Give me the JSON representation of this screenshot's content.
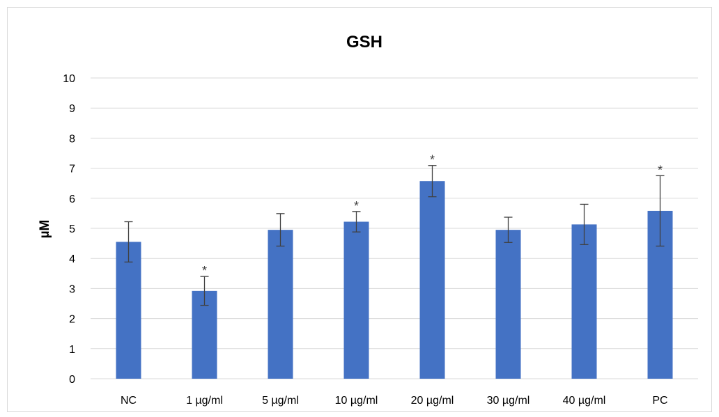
{
  "chart_data": {
    "type": "bar",
    "title": "GSH",
    "xlabel": "",
    "ylabel": "µM",
    "ylim": [
      0,
      10
    ],
    "yticks": [
      0,
      1,
      2,
      3,
      4,
      5,
      6,
      7,
      8,
      9,
      10
    ],
    "ytick_labels": [
      "0",
      "1",
      "2",
      "3",
      "4",
      "5",
      "6",
      "7",
      "8",
      "9",
      "10"
    ],
    "grid": true,
    "legend": "none",
    "categories": [
      "NC",
      "1 µg/ml",
      "5 µg/ml",
      "10 µg/ml",
      "20 µg/ml",
      "30 µg/ml",
      "40 µg/ml",
      "PC"
    ],
    "series": [
      {
        "values": [
          4.55,
          2.92,
          4.95,
          5.22,
          6.57,
          4.95,
          5.13,
          5.58
        ],
        "error": [
          0.67,
          0.48,
          0.54,
          0.34,
          0.52,
          0.42,
          0.67,
          1.17
        ]
      }
    ],
    "annotations": [
      "",
      "*",
      "",
      "*",
      "*",
      "",
      "",
      "*"
    ],
    "colors": {
      "bar": "#4472c4",
      "grid": "#d9d9d9",
      "error_bar": "#404040",
      "text": "#000000"
    }
  }
}
